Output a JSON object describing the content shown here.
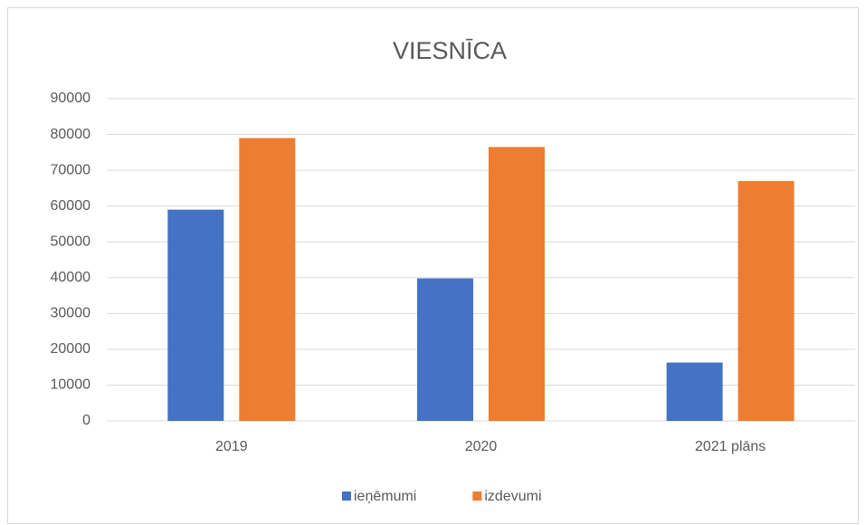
{
  "chart_data": {
    "type": "bar",
    "title": "VIESNĪCA",
    "categories": [
      "2019",
      "2020",
      "2021 plāns"
    ],
    "series": [
      {
        "name": "ieņēmumi",
        "color": "#4472c4",
        "values": [
          59000,
          39800,
          16300
        ]
      },
      {
        "name": "izdevumi",
        "color": "#ed7d31",
        "values": [
          79000,
          76500,
          67000
        ]
      }
    ],
    "ylim": [
      0,
      90000
    ],
    "yticks": [
      0,
      10000,
      20000,
      30000,
      40000,
      50000,
      60000,
      70000,
      80000,
      90000
    ],
    "grid": true,
    "legend": "bottom"
  }
}
